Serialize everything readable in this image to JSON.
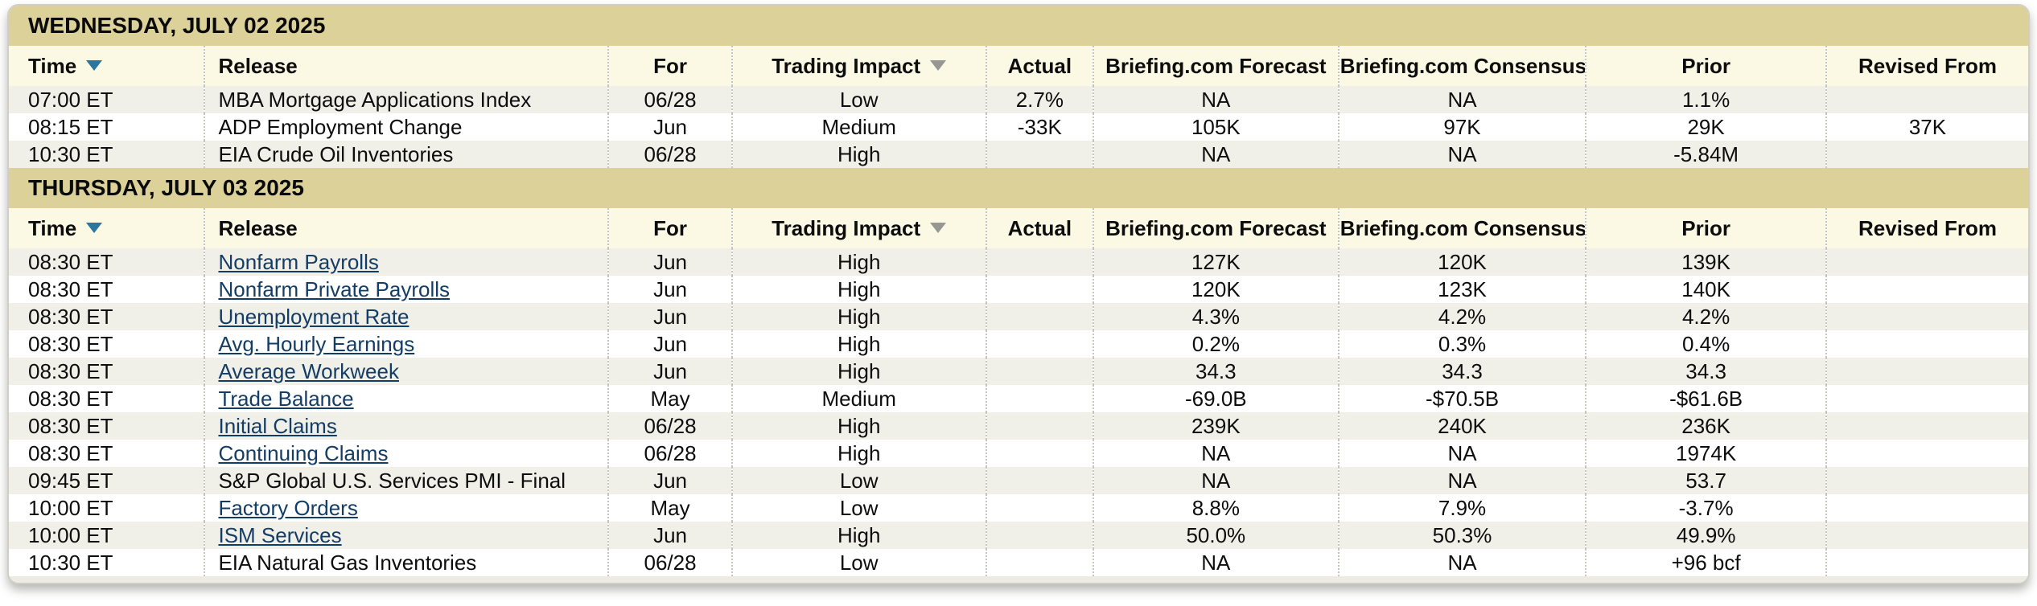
{
  "colors": {
    "band": "#dbd199",
    "cream": "#fbf9e3",
    "row-alt": "#f0f0e9",
    "footer": "#ecece5",
    "border": "#cfcfc6",
    "separator": "#c6c6bd",
    "link": "#143d66",
    "sort-active": "#2a76a0",
    "sort-inactive": "#969692",
    "text": "#0d0d0d"
  },
  "columns": [
    {
      "label": "Time",
      "sort": "active"
    },
    {
      "label": "Release"
    },
    {
      "label": "For"
    },
    {
      "label": "Trading Impact",
      "sort": "inactive"
    },
    {
      "label": "Actual"
    },
    {
      "label": "Briefing.com Forecast"
    },
    {
      "label": "Briefing.com Consensus"
    },
    {
      "label": "Prior"
    },
    {
      "label": "Revised From"
    }
  ],
  "sections": [
    {
      "date": "WEDNESDAY, JULY 02 2025",
      "rows": [
        {
          "time": "07:00 ET",
          "release": "MBA Mortgage Applications Index",
          "link": false,
          "for": "06/28",
          "impact": "Low",
          "actual": "2.7%",
          "forecast": "NA",
          "consensus": "NA",
          "prior": "1.1%",
          "revised": ""
        },
        {
          "time": "08:15 ET",
          "release": "ADP Employment Change",
          "link": false,
          "for": "Jun",
          "impact": "Medium",
          "actual": "-33K",
          "forecast": "105K",
          "consensus": "97K",
          "prior": "29K",
          "revised": "37K"
        },
        {
          "time": "10:30 ET",
          "release": "EIA Crude Oil Inventories",
          "link": false,
          "for": "06/28",
          "impact": "High",
          "actual": "",
          "forecast": "NA",
          "consensus": "NA",
          "prior": "-5.84M",
          "revised": ""
        }
      ]
    },
    {
      "date": "THURSDAY, JULY 03 2025",
      "rows": [
        {
          "time": "08:30 ET",
          "release": "Nonfarm Payrolls",
          "link": true,
          "for": "Jun",
          "impact": "High",
          "actual": "",
          "forecast": "127K",
          "consensus": "120K",
          "prior": "139K",
          "revised": ""
        },
        {
          "time": "08:30 ET",
          "release": "Nonfarm Private Payrolls",
          "link": true,
          "for": "Jun",
          "impact": "High",
          "actual": "",
          "forecast": "120K",
          "consensus": "123K",
          "prior": "140K",
          "revised": ""
        },
        {
          "time": "08:30 ET",
          "release": "Unemployment Rate",
          "link": true,
          "for": "Jun",
          "impact": "High",
          "actual": "",
          "forecast": "4.3%",
          "consensus": "4.2%",
          "prior": "4.2%",
          "revised": ""
        },
        {
          "time": "08:30 ET",
          "release": "Avg. Hourly Earnings",
          "link": true,
          "for": "Jun",
          "impact": "High",
          "actual": "",
          "forecast": "0.2%",
          "consensus": "0.3%",
          "prior": "0.4%",
          "revised": ""
        },
        {
          "time": "08:30 ET",
          "release": "Average Workweek",
          "link": true,
          "for": "Jun",
          "impact": "High",
          "actual": "",
          "forecast": "34.3",
          "consensus": "34.3",
          "prior": "34.3",
          "revised": ""
        },
        {
          "time": "08:30 ET",
          "release": "Trade Balance",
          "link": true,
          "for": "May",
          "impact": "Medium",
          "actual": "",
          "forecast": "-69.0B",
          "consensus": "-$70.5B",
          "prior": "-$61.6B",
          "revised": ""
        },
        {
          "time": "08:30 ET",
          "release": "Initial Claims",
          "link": true,
          "for": "06/28",
          "impact": "High",
          "actual": "",
          "forecast": "239K",
          "consensus": "240K",
          "prior": "236K",
          "revised": ""
        },
        {
          "time": "08:30 ET",
          "release": "Continuing Claims",
          "link": true,
          "for": "06/28",
          "impact": "High",
          "actual": "",
          "forecast": "NA",
          "consensus": "NA",
          "prior": "1974K",
          "revised": ""
        },
        {
          "time": "09:45 ET",
          "release": "S&P Global U.S. Services PMI - Final",
          "link": false,
          "for": "Jun",
          "impact": "Low",
          "actual": "",
          "forecast": "NA",
          "consensus": "NA",
          "prior": "53.7",
          "revised": ""
        },
        {
          "time": "10:00 ET",
          "release": "Factory Orders",
          "link": true,
          "for": "May",
          "impact": "Low",
          "actual": "",
          "forecast": "8.8%",
          "consensus": "7.9%",
          "prior": "-3.7%",
          "revised": ""
        },
        {
          "time": "10:00 ET",
          "release": "ISM Services",
          "link": true,
          "for": "Jun",
          "impact": "High",
          "actual": "",
          "forecast": "50.0%",
          "consensus": "50.3%",
          "prior": "49.9%",
          "revised": ""
        },
        {
          "time": "10:30 ET",
          "release": "EIA Natural Gas Inventories",
          "link": false,
          "for": "06/28",
          "impact": "Low",
          "actual": "",
          "forecast": "NA",
          "consensus": "NA",
          "prior": "+96 bcf",
          "revised": ""
        }
      ]
    }
  ]
}
